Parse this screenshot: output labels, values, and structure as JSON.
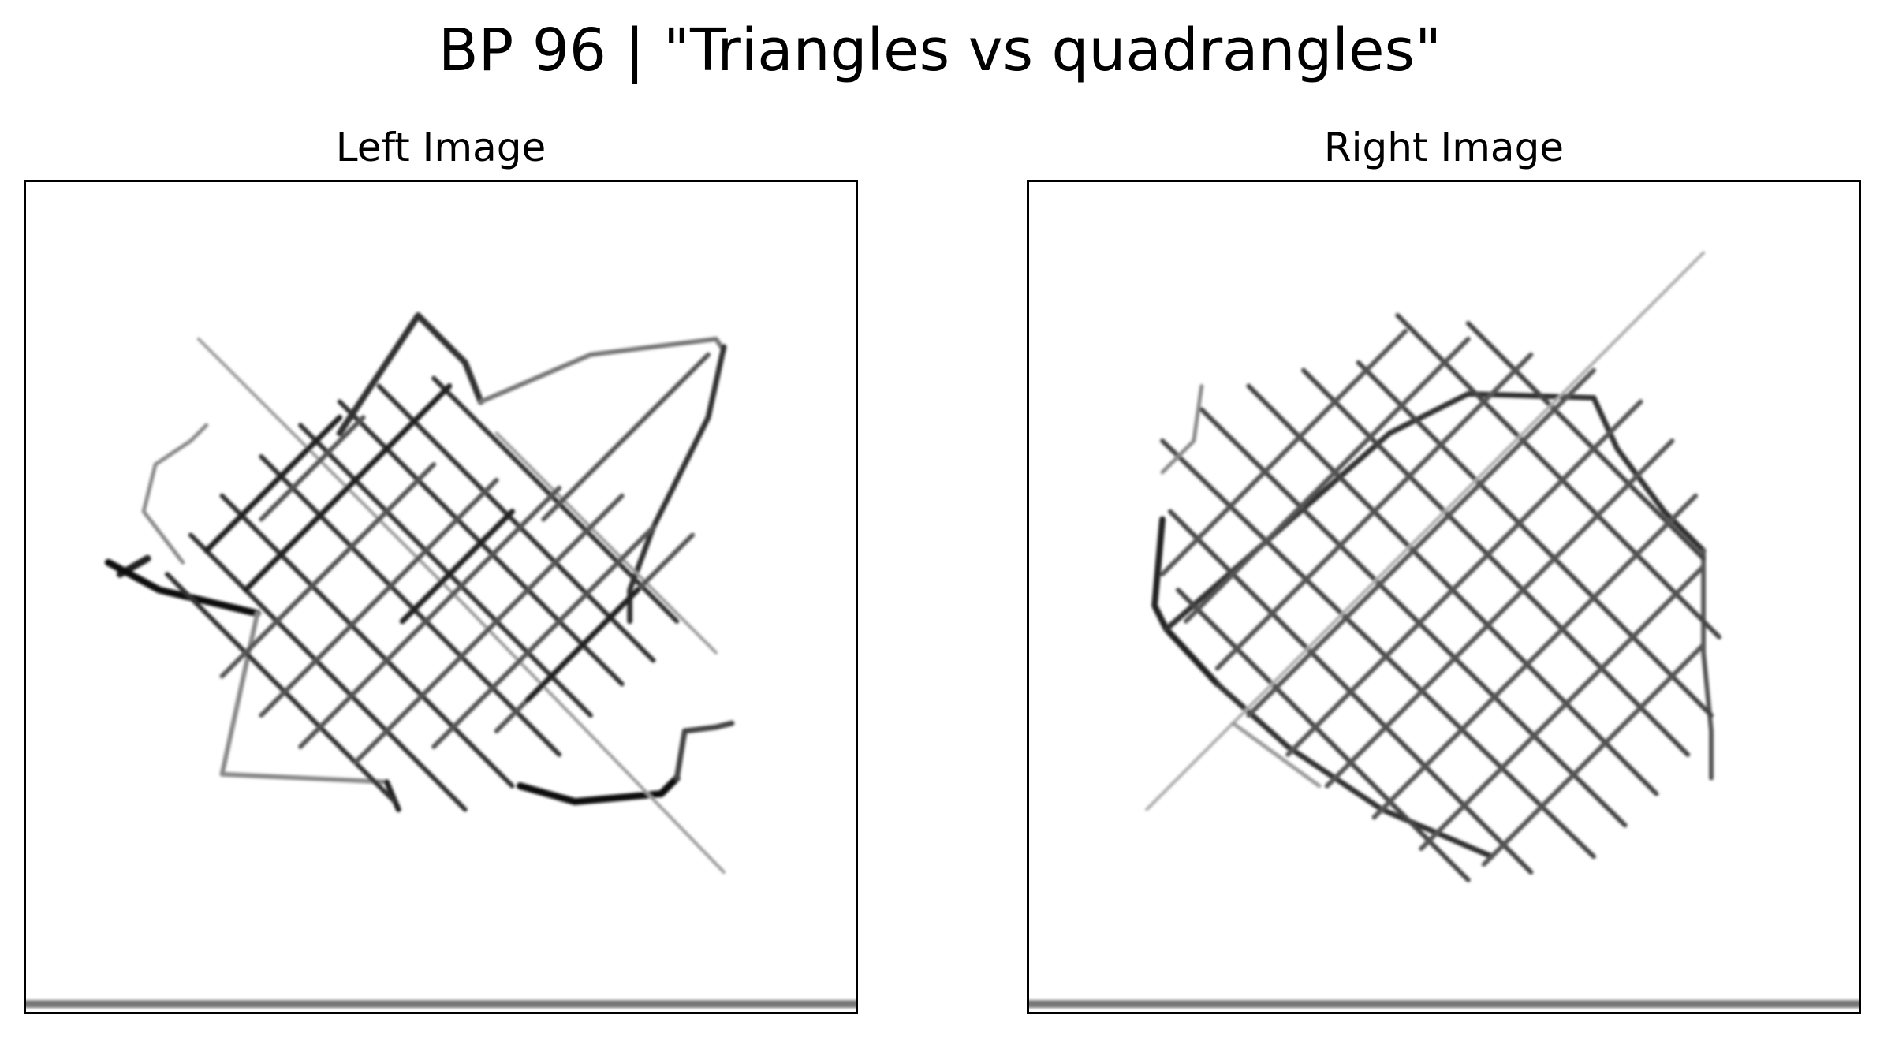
{
  "figure": {
    "title": "BP 96 | \"Triangles vs quadrangles\""
  },
  "panels": [
    {
      "title": "Left Image"
    },
    {
      "title": "Right Image"
    }
  ]
}
